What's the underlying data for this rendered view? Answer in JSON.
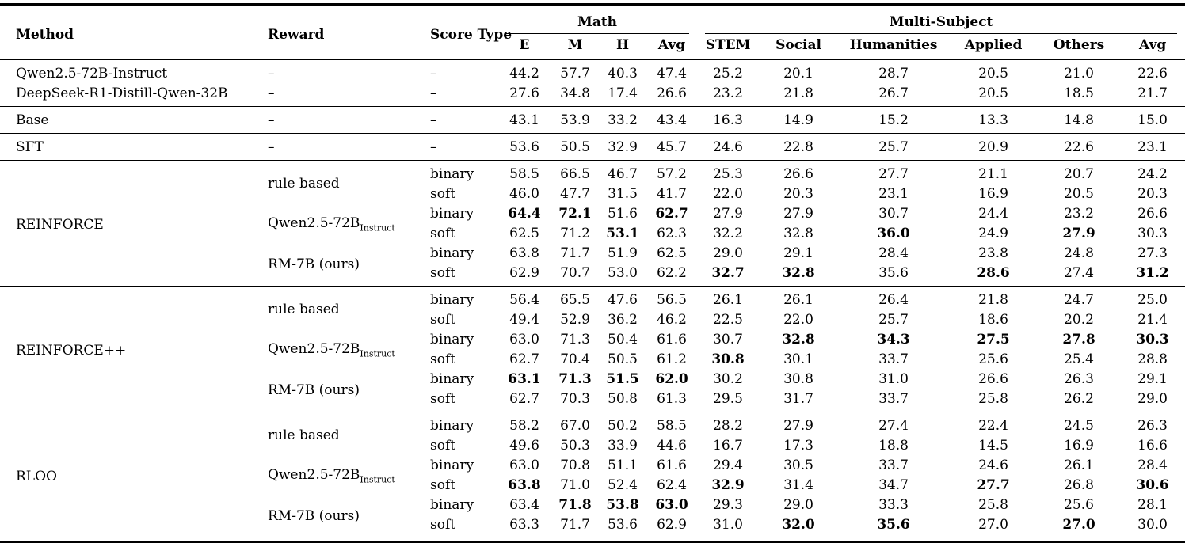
{
  "page": {
    "background": "#ffffff",
    "text_color": "#000000",
    "rule_color": "#000000"
  },
  "table": {
    "header": {
      "method": "Method",
      "reward": "Reward",
      "score_type": "Score Type",
      "groups": [
        {
          "label": "Math",
          "cols": [
            "E",
            "M",
            "H",
            "Avg"
          ]
        },
        {
          "label": "Multi-Subject",
          "cols": [
            "STEM",
            "Social",
            "Humanities",
            "Applied",
            "Others",
            "Avg"
          ]
        }
      ]
    },
    "sections": [
      {
        "rows": [
          {
            "method": "Qwen2.5-72B-Instruct",
            "reward": "–",
            "score": "–",
            "values": [
              "44.2",
              "57.7",
              "40.3",
              "47.4",
              "25.2",
              "20.1",
              "28.7",
              "20.5",
              "21.0",
              "22.6"
            ],
            "bold": []
          },
          {
            "method": "DeepSeek-R1-Distill-Qwen-32B",
            "reward": "–",
            "score": "–",
            "values": [
              "27.6",
              "34.8",
              "17.4",
              "26.6",
              "23.2",
              "21.8",
              "26.7",
              "20.5",
              "18.5",
              "21.7"
            ],
            "bold": []
          }
        ]
      },
      {
        "rows": [
          {
            "method": "Base",
            "reward": "–",
            "score": "–",
            "values": [
              "43.1",
              "53.9",
              "33.2",
              "43.4",
              "16.3",
              "14.9",
              "15.2",
              "13.3",
              "14.8",
              "15.0"
            ],
            "bold": []
          }
        ]
      },
      {
        "rows": [
          {
            "method": "SFT",
            "reward": "–",
            "score": "–",
            "values": [
              "53.6",
              "50.5",
              "32.9",
              "45.7",
              "24.6",
              "22.8",
              "25.7",
              "20.9",
              "22.6",
              "23.1"
            ],
            "bold": []
          }
        ]
      },
      {
        "method": "REINFORCE",
        "groups": [
          {
            "reward": "rule based",
            "reward_sub": "",
            "rows": [
              {
                "score": "binary",
                "values": [
                  "58.5",
                  "66.5",
                  "46.7",
                  "57.2",
                  "25.3",
                  "26.6",
                  "27.7",
                  "21.1",
                  "20.7",
                  "24.2"
                ],
                "bold": []
              },
              {
                "score": "soft",
                "values": [
                  "46.0",
                  "47.7",
                  "31.5",
                  "41.7",
                  "22.0",
                  "20.3",
                  "23.1",
                  "16.9",
                  "20.5",
                  "20.3"
                ],
                "bold": []
              }
            ]
          },
          {
            "reward": "Qwen2.5-72B",
            "reward_sub": "Instruct",
            "rows": [
              {
                "score": "binary",
                "values": [
                  "64.4",
                  "72.1",
                  "51.6",
                  "62.7",
                  "27.9",
                  "27.9",
                  "30.7",
                  "24.4",
                  "23.2",
                  "26.6"
                ],
                "bold": [
                  0,
                  1,
                  3
                ]
              },
              {
                "score": "soft",
                "values": [
                  "62.5",
                  "71.2",
                  "53.1",
                  "62.3",
                  "32.2",
                  "32.8",
                  "36.0",
                  "24.9",
                  "27.9",
                  "30.3"
                ],
                "bold": [
                  2,
                  6,
                  8
                ]
              }
            ]
          },
          {
            "reward": "RM-7B (ours)",
            "reward_sub": "",
            "rows": [
              {
                "score": "binary",
                "values": [
                  "63.8",
                  "71.7",
                  "51.9",
                  "62.5",
                  "29.0",
                  "29.1",
                  "28.4",
                  "23.8",
                  "24.8",
                  "27.3"
                ],
                "bold": []
              },
              {
                "score": "soft",
                "values": [
                  "62.9",
                  "70.7",
                  "53.0",
                  "62.2",
                  "32.7",
                  "32.8",
                  "35.6",
                  "28.6",
                  "27.4",
                  "31.2"
                ],
                "bold": [
                  4,
                  5,
                  7,
                  9
                ]
              }
            ]
          }
        ]
      },
      {
        "method": "REINFORCE++",
        "groups": [
          {
            "reward": "rule based",
            "reward_sub": "",
            "rows": [
              {
                "score": "binary",
                "values": [
                  "56.4",
                  "65.5",
                  "47.6",
                  "56.5",
                  "26.1",
                  "26.1",
                  "26.4",
                  "21.8",
                  "24.7",
                  "25.0"
                ],
                "bold": []
              },
              {
                "score": "soft",
                "values": [
                  "49.4",
                  "52.9",
                  "36.2",
                  "46.2",
                  "22.5",
                  "22.0",
                  "25.7",
                  "18.6",
                  "20.2",
                  "21.4"
                ],
                "bold": []
              }
            ]
          },
          {
            "reward": "Qwen2.5-72B",
            "reward_sub": "Instruct",
            "rows": [
              {
                "score": "binary",
                "values": [
                  "63.0",
                  "71.3",
                  "50.4",
                  "61.6",
                  "30.7",
                  "32.8",
                  "34.3",
                  "27.5",
                  "27.8",
                  "30.3"
                ],
                "bold": [
                  5,
                  6,
                  7,
                  8,
                  9
                ]
              },
              {
                "score": "soft",
                "values": [
                  "62.7",
                  "70.4",
                  "50.5",
                  "61.2",
                  "30.8",
                  "30.1",
                  "33.7",
                  "25.6",
                  "25.4",
                  "28.8"
                ],
                "bold": [
                  4
                ]
              }
            ]
          },
          {
            "reward": "RM-7B (ours)",
            "reward_sub": "",
            "rows": [
              {
                "score": "binary",
                "values": [
                  "63.1",
                  "71.3",
                  "51.5",
                  "62.0",
                  "30.2",
                  "30.8",
                  "31.0",
                  "26.6",
                  "26.3",
                  "29.1"
                ],
                "bold": [
                  0,
                  1,
                  2,
                  3
                ]
              },
              {
                "score": "soft",
                "values": [
                  "62.7",
                  "70.3",
                  "50.8",
                  "61.3",
                  "29.5",
                  "31.7",
                  "33.7",
                  "25.8",
                  "26.2",
                  "29.0"
                ],
                "bold": []
              }
            ]
          }
        ]
      },
      {
        "method": "RLOO",
        "groups": [
          {
            "reward": "rule based",
            "reward_sub": "",
            "rows": [
              {
                "score": "binary",
                "values": [
                  "58.2",
                  "67.0",
                  "50.2",
                  "58.5",
                  "28.2",
                  "27.9",
                  "27.4",
                  "22.4",
                  "24.5",
                  "26.3"
                ],
                "bold": []
              },
              {
                "score": "soft",
                "values": [
                  "49.6",
                  "50.3",
                  "33.9",
                  "44.6",
                  "16.7",
                  "17.3",
                  "18.8",
                  "14.5",
                  "16.9",
                  "16.6"
                ],
                "bold": []
              }
            ]
          },
          {
            "reward": "Qwen2.5-72B",
            "reward_sub": "Instruct",
            "rows": [
              {
                "score": "binary",
                "values": [
                  "63.0",
                  "70.8",
                  "51.1",
                  "61.6",
                  "29.4",
                  "30.5",
                  "33.7",
                  "24.6",
                  "26.1",
                  "28.4"
                ],
                "bold": []
              },
              {
                "score": "soft",
                "values": [
                  "63.8",
                  "71.0",
                  "52.4",
                  "62.4",
                  "32.9",
                  "31.4",
                  "34.7",
                  "27.7",
                  "26.8",
                  "30.6"
                ],
                "bold": [
                  0,
                  4,
                  7,
                  9
                ]
              }
            ]
          },
          {
            "reward": "RM-7B (ours)",
            "reward_sub": "",
            "rows": [
              {
                "score": "binary",
                "values": [
                  "63.4",
                  "71.8",
                  "53.8",
                  "63.0",
                  "29.3",
                  "29.0",
                  "33.3",
                  "25.8",
                  "25.6",
                  "28.1"
                ],
                "bold": [
                  1,
                  2,
                  3
                ]
              },
              {
                "score": "soft",
                "values": [
                  "63.3",
                  "71.7",
                  "53.6",
                  "62.9",
                  "31.0",
                  "32.0",
                  "35.6",
                  "27.0",
                  "27.0",
                  "30.0"
                ],
                "bold": [
                  5,
                  6,
                  8
                ]
              }
            ]
          }
        ]
      }
    ]
  }
}
